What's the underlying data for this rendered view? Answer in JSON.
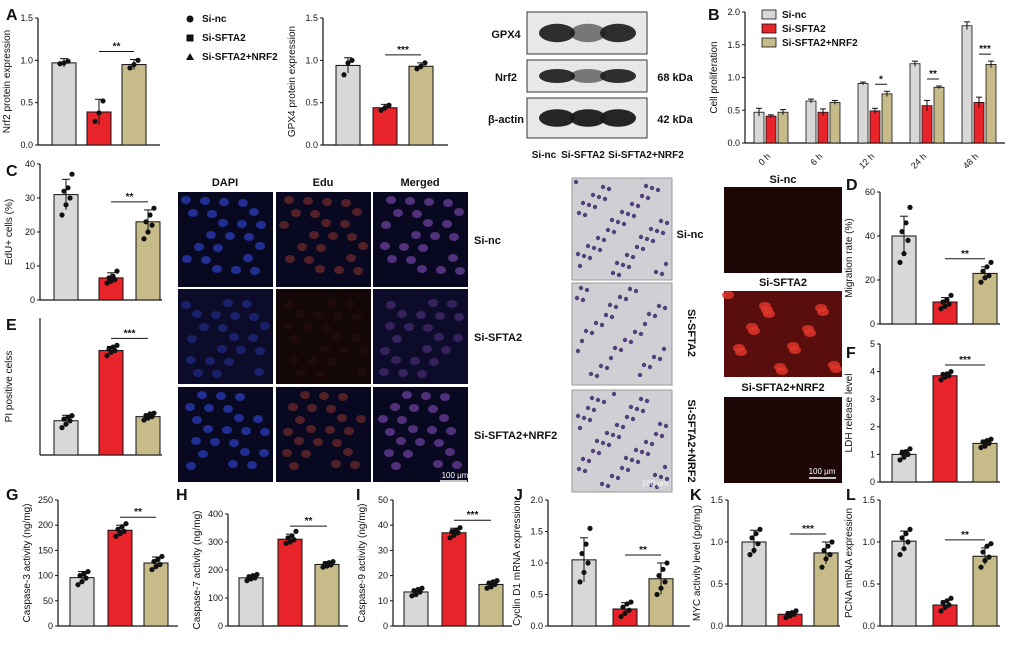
{
  "panel_letters": [
    "A",
    "B",
    "C",
    "D",
    "E",
    "F",
    "G",
    "H",
    "I",
    "J",
    "K",
    "L"
  ],
  "groups": [
    "Si-nc",
    "Si-SFTA2",
    "Si-SFTA2+NRF2"
  ],
  "colors": {
    "si_nc": "#d8d8d8",
    "si_sfta2": "#e8232a",
    "si_sfta2_nrf2": "#c8bb8a",
    "dot": "#111111",
    "blot": "#1a1a1a"
  },
  "legend_a": {
    "items": [
      "Si-nc",
      "Si-SFTA2",
      "Si-SFTA2+NRF2"
    ]
  },
  "blot": {
    "bands": [
      "GPX4",
      "Nrf2",
      "β-actin"
    ],
    "kda": [
      "",
      "68 kDa",
      "42 kDa"
    ],
    "lanes": [
      "Si-nc",
      "Si-SFTA2",
      "Si-SFTA2+NRF2"
    ]
  },
  "microscopy": {
    "headers": [
      "DAPI",
      "Edu",
      "Merged"
    ],
    "rows": [
      "Si-nc",
      "Si-SFTA2",
      "Si-SFTA2+NRF2"
    ],
    "scale": "100 μm",
    "colors": {
      "dapi": "#2a3bb8",
      "edu": "#6b2a2a",
      "merged": "#6a3f9a"
    }
  },
  "transwell": {
    "rows": [
      "Si-nc",
      "Si-SFTA2",
      "Si-SFTA2+NRF2"
    ],
    "scale": "100 μm"
  },
  "ldh_images": {
    "rows": [
      "Si-nc",
      "Si-SFTA2",
      "Si-SFTA2+NRF2"
    ],
    "scale": "100 μm"
  },
  "chart_data": [
    {
      "panel": "A1",
      "type": "bar",
      "categories": [
        "Si-nc",
        "Si-SFTA2",
        "Si-SFTA2+NRF2"
      ],
      "values": [
        0.97,
        0.39,
        0.95
      ],
      "errors": [
        0.05,
        0.15,
        0.06
      ],
      "ylabel": "Nrf2 protein expression",
      "ylim": [
        0,
        1.5
      ],
      "yticks": [
        0,
        0.5,
        1.0,
        1.5
      ],
      "ytick_labels": [
        "0.0",
        "0.5",
        "1.0",
        "1.5"
      ],
      "sig": "**",
      "sig_between": [
        1,
        2
      ],
      "points": [
        [
          0.96,
          0.97,
          0.99
        ],
        [
          0.28,
          0.38,
          0.52
        ],
        [
          0.91,
          0.95,
          1.0
        ]
      ]
    },
    {
      "panel": "A2",
      "type": "bar",
      "categories": [
        "Si-nc",
        "Si-SFTA2",
        "Si-SFTA2+NRF2"
      ],
      "values": [
        0.94,
        0.44,
        0.93
      ],
      "errors": [
        0.09,
        0.04,
        0.04
      ],
      "ylabel": "GPX4 protein expression",
      "ylim": [
        0,
        1.5
      ],
      "yticks": [
        0,
        0.5,
        1.0,
        1.5
      ],
      "ytick_labels": [
        "0.0",
        "0.5",
        "1.0",
        "1.5"
      ],
      "sig": "***",
      "sig_between": [
        1,
        2
      ],
      "points": [
        [
          0.83,
          0.97,
          1.0
        ],
        [
          0.41,
          0.44,
          0.47
        ],
        [
          0.9,
          0.93,
          0.97
        ]
      ]
    },
    {
      "panel": "B",
      "type": "bar",
      "categories": [
        "0 h",
        "6 h",
        "12 h",
        "24 h",
        "48 h"
      ],
      "series": [
        {
          "name": "Si-nc",
          "values": [
            0.47,
            0.64,
            0.91,
            1.21,
            1.79
          ]
        },
        {
          "name": "Si-SFTA2",
          "values": [
            0.41,
            0.47,
            0.49,
            0.57,
            0.62
          ]
        },
        {
          "name": "Si-SFTA2+NRF2",
          "values": [
            0.47,
            0.62,
            0.75,
            0.85,
            1.2
          ]
        }
      ],
      "errors": [
        [
          0.06,
          0.03,
          0.02,
          0.04,
          0.06
        ],
        [
          0.02,
          0.05,
          0.04,
          0.08,
          0.08
        ],
        [
          0.04,
          0.03,
          0.04,
          0.02,
          0.05
        ]
      ],
      "ylabel": "Cell proliferation",
      "ylim": [
        0,
        2.0
      ],
      "yticks": [
        0,
        0.5,
        1.0,
        1.5,
        2.0
      ],
      "ytick_labels": [
        "0.0",
        "0.5",
        "1.0",
        "1.5",
        "2.0"
      ],
      "sig": [
        "",
        "",
        "*",
        "**",
        "***"
      ],
      "legend": "top-left"
    },
    {
      "panel": "C",
      "type": "bar",
      "categories": [
        "Si-nc",
        "Si-SFTA2",
        "Si-SFTA2+NRF2"
      ],
      "values": [
        31,
        6.5,
        23
      ],
      "errors": [
        4.5,
        1.5,
        3.5
      ],
      "ylabel": "EdU+ cells (%)",
      "ylim": [
        0,
        40
      ],
      "yticks": [
        0,
        10,
        20,
        30,
        40
      ],
      "ytick_labels": [
        "0",
        "10",
        "20",
        "30",
        "40"
      ],
      "sig": "**",
      "sig_between": [
        1,
        2
      ],
      "points": [
        [
          25,
          28,
          30,
          32,
          33,
          37
        ],
        [
          5,
          5.5,
          6,
          6.5,
          7,
          8.5
        ],
        [
          18,
          20,
          22,
          23,
          25,
          27
        ]
      ]
    },
    {
      "panel": "E",
      "type": "bar",
      "categories": [
        "Si-nc",
        "Si-SFTA2",
        "Si-SFTA2+NRF2"
      ],
      "values": [
        1.0,
        3.05,
        1.12
      ],
      "errors": [
        0.16,
        0.12,
        0.08
      ],
      "ylabel": "PI positive celss",
      "ylim": [
        0,
        4
      ],
      "yticks": [],
      "ytick_labels": [],
      "sig": "***",
      "sig_between": [
        1,
        2
      ],
      "points": [
        [
          0.8,
          0.9,
          1.0,
          1.05,
          1.1,
          1.15
        ],
        [
          2.9,
          3.0,
          3.05,
          3.1,
          3.15,
          3.2
        ],
        [
          1.02,
          1.08,
          1.12,
          1.15,
          1.2,
          1.22
        ]
      ]
    },
    {
      "panel": "D",
      "type": "bar",
      "categories": [
        "Si-nc",
        "Si-SFTA2",
        "Si-SFTA2+NRF2"
      ],
      "values": [
        40,
        10,
        23
      ],
      "errors": [
        9,
        2,
        3
      ],
      "ylabel": "Migration rate (%)",
      "ylim": [
        0,
        60
      ],
      "yticks": [
        0,
        20,
        40,
        60
      ],
      "ytick_labels": [
        "0",
        "20",
        "40",
        "60"
      ],
      "sig": "**",
      "sig_between": [
        1,
        2
      ],
      "points": [
        [
          28,
          32,
          38,
          42,
          46,
          53
        ],
        [
          7,
          8,
          9,
          10,
          11,
          13
        ],
        [
          19,
          21,
          22,
          24,
          26,
          28
        ]
      ]
    },
    {
      "panel": "F",
      "type": "bar",
      "categories": [
        "Si-nc",
        "Si-SFTA2",
        "Si-SFTA2+NRF2"
      ],
      "values": [
        1.0,
        3.85,
        1.4
      ],
      "errors": [
        0.15,
        0.1,
        0.12
      ],
      "ylabel": "LDH release level",
      "ylim": [
        0,
        5
      ],
      "yticks": [
        0,
        1,
        2,
        3,
        4,
        5
      ],
      "ytick_labels": [
        "0",
        "1",
        "2",
        "3",
        "4",
        "5"
      ],
      "sig": "***",
      "sig_between": [
        1,
        2
      ],
      "points": [
        [
          0.8,
          0.9,
          1.0,
          1.05,
          1.1,
          1.2
        ],
        [
          3.7,
          3.8,
          3.85,
          3.9,
          3.92,
          4.0
        ],
        [
          1.25,
          1.3,
          1.4,
          1.45,
          1.5,
          1.55
        ]
      ]
    },
    {
      "panel": "G",
      "type": "bar",
      "categories": [
        "Si-nc",
        "Si-SFTA2",
        "Si-SFTA2+NRF2"
      ],
      "values": [
        96,
        190,
        125
      ],
      "errors": [
        12,
        10,
        12
      ],
      "ylabel": "Caspase-3 activity (ng/mg)",
      "ylim": [
        0,
        250
      ],
      "yticks": [
        0,
        50,
        100,
        150,
        200,
        250
      ],
      "ytick_labels": [
        "0",
        "50",
        "100",
        "150",
        "200",
        "250"
      ],
      "sig": "**",
      "sig_between": [
        1,
        2
      ],
      "points": [
        [
          82,
          88,
          95,
          100,
          103,
          108
        ],
        [
          178,
          183,
          188,
          192,
          197,
          203
        ],
        [
          112,
          118,
          122,
          128,
          132,
          138
        ]
      ]
    },
    {
      "panel": "H",
      "type": "bar",
      "categories": [
        "Si-nc",
        "Si-SFTA2",
        "Si-SFTA2+NRF2"
      ],
      "values": [
        172,
        310,
        220
      ],
      "errors": [
        10,
        18,
        10
      ],
      "ylabel": "Caspase-7 activity (ng/mg)",
      "ylim": [
        0,
        400
      ],
      "yticks": [
        0,
        100,
        200,
        300,
        400
      ],
      "ytick_labels": [
        "0",
        "100",
        "200",
        "300",
        "400"
      ],
      "sig": "**",
      "sig_between": [
        1,
        2
      ],
      "points": [
        [
          162,
          168,
          172,
          176,
          180,
          184
        ],
        [
          295,
          300,
          308,
          315,
          322,
          338
        ],
        [
          210,
          214,
          218,
          222,
          226,
          230
        ]
      ]
    },
    {
      "panel": "I",
      "type": "bar",
      "categories": [
        "Si-nc",
        "Si-SFTA2",
        "Si-SFTA2+NRF2"
      ],
      "values": [
        13.5,
        37,
        16.5
      ],
      "errors": [
        1.2,
        1.8,
        1.2
      ],
      "ylabel": "Caspase-9 activity (ng/mg)",
      "ylim": [
        0,
        50
      ],
      "yticks": [
        0,
        10,
        20,
        30,
        40,
        50
      ],
      "ytick_labels": [
        "0",
        "10",
        "20",
        "30",
        "40",
        "50"
      ],
      "sig": "***",
      "sig_between": [
        1,
        2
      ],
      "points": [
        [
          12,
          12.5,
          13.5,
          14,
          14.5,
          15
        ],
        [
          35,
          36,
          37,
          37.5,
          38,
          39
        ],
        [
          15,
          15.5,
          16.5,
          17,
          17.5,
          18
        ]
      ]
    },
    {
      "panel": "J",
      "type": "bar",
      "categories": [
        "Si-nc",
        "Si-SFTA2",
        "Si-SFTA2+NRF2"
      ],
      "values": [
        1.05,
        0.27,
        0.75
      ],
      "errors": [
        0.35,
        0.1,
        0.25
      ],
      "ylabel": "Cyclin D1 mRNA expression",
      "ylim": [
        0,
        2.0
      ],
      "yticks": [
        0,
        0.5,
        1.0,
        1.5,
        2.0
      ],
      "ytick_labels": [
        "0.0",
        "0.5",
        "1.0",
        "1.5",
        "2.0"
      ],
      "sig": "**",
      "sig_between": [
        1,
        2
      ],
      "points": [
        [
          0.7,
          0.85,
          1.0,
          1.15,
          1.3,
          1.55
        ],
        [
          0.15,
          0.2,
          0.25,
          0.3,
          0.35,
          0.38
        ],
        [
          0.5,
          0.6,
          0.7,
          0.8,
          0.9,
          1.0
        ]
      ]
    },
    {
      "panel": "K",
      "type": "bar",
      "categories": [
        "Si-nc",
        "Si-SFTA2",
        "Si-SFTA2+NRF2"
      ],
      "values": [
        1.0,
        0.14,
        0.87
      ],
      "errors": [
        0.14,
        0.03,
        0.13
      ],
      "ylabel": "MYC activity level (pg/mg)",
      "ylim": [
        0,
        1.5
      ],
      "yticks": [
        0,
        0.5,
        1.0,
        1.5
      ],
      "ytick_labels": [
        "0.0",
        "0.5",
        "1.0",
        "1.5"
      ],
      "sig": "***",
      "sig_between": [
        1,
        2
      ],
      "points": [
        [
          0.85,
          0.9,
          0.98,
          1.05,
          1.1,
          1.15
        ],
        [
          0.1,
          0.12,
          0.14,
          0.15,
          0.16,
          0.18
        ],
        [
          0.7,
          0.8,
          0.85,
          0.9,
          0.95,
          1.0
        ]
      ]
    },
    {
      "panel": "L",
      "type": "bar",
      "categories": [
        "Si-nc",
        "Si-SFTA2",
        "Si-SFTA2+NRF2"
      ],
      "values": [
        1.01,
        0.25,
        0.83
      ],
      "errors": [
        0.12,
        0.05,
        0.1
      ],
      "ylabel": "PCNA mRNA expression",
      "ylim": [
        0,
        1.5
      ],
      "yticks": [
        0,
        0.5,
        1.0,
        1.5
      ],
      "ytick_labels": [
        "0.0",
        "0.5",
        "1.0",
        "1.5"
      ],
      "sig": "**",
      "sig_between": [
        1,
        2
      ],
      "points": [
        [
          0.85,
          0.92,
          1.0,
          1.05,
          1.1,
          1.15
        ],
        [
          0.18,
          0.22,
          0.25,
          0.28,
          0.3,
          0.33
        ],
        [
          0.7,
          0.78,
          0.82,
          0.88,
          0.95,
          0.98
        ]
      ]
    }
  ]
}
